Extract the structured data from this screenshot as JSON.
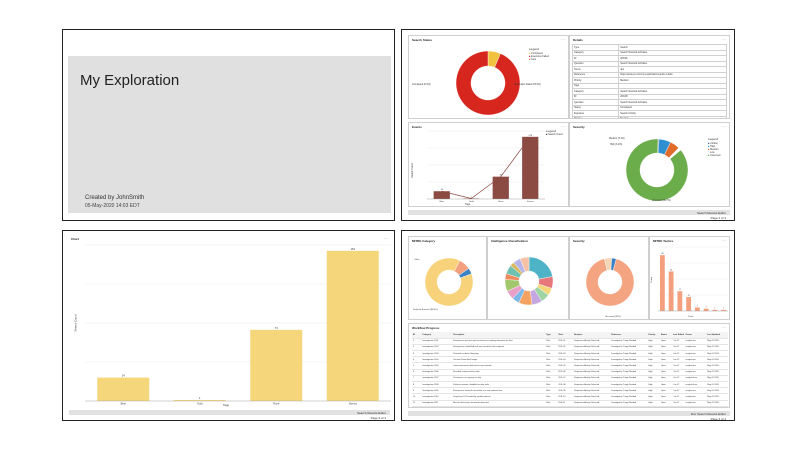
{
  "page1": {
    "title": "My Exploration",
    "created_by": "Created by JohnSmith",
    "created_date": "05-May-2020 14:03 EDT"
  },
  "page2": {
    "panel_a": {
      "title": "Search Status",
      "legend_title": "Legend",
      "legend": [
        "Completed",
        "Execution Failed",
        "Sent"
      ],
      "colors": [
        "#f2c13d",
        "#d7261e",
        "#e87a2a"
      ],
      "pie_label": "Completed (6.4%)",
      "pie_label2": "Execution Failed (93.6%)"
    },
    "panel_b": {
      "title": "Details",
      "rows": [
        [
          "Type",
          "Search"
        ],
        [
          "Category",
          "Search Network Activities"
        ],
        [
          "ID",
          "2CFA6"
        ],
        [
          "Question",
          "Search Network Activities"
        ],
        [
          "Terms",
          "dns"
        ],
        [
          "Reference",
          "https://www.ex.com/my-exploration/results-1-data"
        ],
        [
          "Priority",
          "Medium"
        ],
        [
          "Tags",
          ""
        ],
        [
          "Category",
          "Search Network Activities"
        ],
        [
          "ID",
          "2CFA8"
        ],
        [
          "Question",
          "Search Network Activities"
        ],
        [
          "Status",
          "Completed"
        ],
        [
          "Exposure",
          "Search Activity"
        ],
        [
          "Priority",
          "Medium"
        ],
        [
          "Tags",
          ""
        ],
        [
          "Category",
          "File Intelligence"
        ],
        [
          "ID",
          "2CFA9"
        ]
      ]
    },
    "panel_c": {
      "title": "Events",
      "legend_title": "Legend",
      "legend": [
        "Search Count"
      ],
      "categories": [
        "Blue",
        "Gold",
        "Rose",
        "Sienna"
      ],
      "xlabel": "Tags",
      "ylabel": "Search Count"
    },
    "panel_d": {
      "title": "Severity",
      "legend_title": "Legend",
      "legend": [
        "Critical",
        "High",
        "Medium",
        "Low",
        "Unscored"
      ],
      "label_main": "Unscored (86.7%)",
      "label_a": "Medium (5.1%)",
      "label_b": "High (6.2%)"
    },
    "footer": "Search Results Editor",
    "page": "Page 2 of 4"
  },
  "page3": {
    "title": "Chart",
    "xlabel": "Tags",
    "ylabel": "Search Count",
    "footer": "Search Results Editor",
    "page": "Page 3 of 4"
  },
  "page4": {
    "donut1": {
      "title": "MITRE Category",
      "label": "Defense Evasion (88.0%)",
      "label_b": "Other"
    },
    "donut2": {
      "title": "Intelligence Classification",
      "label": ""
    },
    "donut3": {
      "title": "Severity",
      "label": "Unscored (92%)"
    },
    "bar": {
      "title": "MITRE Tactics",
      "ylabel": "Count",
      "xlabel": "Tactic"
    },
    "table": {
      "title": "Workflow Progress",
      "columns": [
        "ID",
        "Category",
        "Description",
        "Type",
        "Rule",
        "Analysis",
        "Reference",
        "Priority",
        "Status",
        "Last Edited",
        "Owner",
        "Last Updated"
      ],
      "rows": [
        [
          "1",
          "Investigation 1001",
          "A suspicious process was launched via scripting interpreter on host",
          "Rule",
          "RUL-01",
          "Suspicious Activity Detected",
          "Investigation Triage Needed",
          "High",
          "Open",
          "Jun 12",
          "analyst.one",
          "May 05 2020"
        ],
        [
          "2",
          "Investigation 1002",
          "A suspicious scheduled task was created on the endpoint",
          "Rule",
          "RUL-02",
          "Suspicious Activity Detected",
          "Investigation Triage Needed",
          "High",
          "Open",
          "Jun 12",
          "analyst.one",
          "May 05 2020"
        ],
        [
          "3",
          "Investigation 1003",
          "Potential credential dumping",
          "Rule",
          "RUL-03",
          "Suspicious Activity Detected",
          "Investigation Triage Needed",
          "High",
          "Open",
          "Jun 12",
          "analyst.two",
          "May 05 2020"
        ],
        [
          "4",
          "Investigation 1004",
          "Unusual PowerShell usage",
          "Rule",
          "RUL-04",
          "Suspicious Activity Detected",
          "Investigation Triage Needed",
          "High",
          "Open",
          "Jun 12",
          "analyst.two",
          "May 05 2020"
        ],
        [
          "5",
          "Investigation 1005",
          "Lateral movement detected across network",
          "Rule",
          "RUL-05",
          "Suspicious Activity Detected",
          "Investigation Triage Needed",
          "High",
          "Open",
          "Jun 12",
          "analyst.one",
          "May 05 2020"
        ],
        [
          "6",
          "Investigation 1006",
          "Encoded command execution",
          "Rule",
          "RUL-06",
          "Suspicious Activity Detected",
          "Investigation Triage Needed",
          "High",
          "Open",
          "Jun 12",
          "analyst.one",
          "May 05 2020"
        ],
        [
          "7",
          "Investigation 1007",
          "Persistence via registry run key",
          "Rule",
          "RUL-07",
          "Suspicious Activity Detected",
          "Investigation Triage Needed",
          "High",
          "Open",
          "Jun 12",
          "analyst.three",
          "May 05 2020"
        ],
        [
          "8",
          "Investigation 1008",
          "Defense evasion: disabled security tools",
          "Rule",
          "RUL-08",
          "Suspicious Activity Detected",
          "Investigation Triage Needed",
          "High",
          "Open",
          "Jun 12",
          "analyst.three",
          "May 05 2020"
        ],
        [
          "9",
          "Investigation 1009",
          "A suspicious network connection to a rare external host",
          "Rule",
          "RUL-09",
          "Suspicious Activity Detected",
          "Investigation Triage Needed",
          "High",
          "Open",
          "Jun 12",
          "analyst.one",
          "May 05 2020"
        ],
        [
          "10",
          "Investigation 1010",
          "Suspicious DLL loaded by system process",
          "Rule",
          "RUL-10",
          "Suspicious Activity Detected",
          "Investigation Triage Needed",
          "High",
          "Open",
          "Jun 12",
          "analyst.two",
          "May 05 2020"
        ],
        [
          "11",
          "Investigation 1011",
          "Account discovery commands observed",
          "Rule",
          "RUL-11",
          "Suspicious Activity Detected",
          "Investigation Triage Needed",
          "High",
          "Open",
          "Jun 12",
          "analyst.two",
          "May 05 2020"
        ],
        [
          "12",
          "Investigation 1012",
          "Process injection into remote process",
          "Rule",
          "RUL-12",
          "Suspicious Activity Detected",
          "Investigation Triage Needed",
          "High",
          "Open",
          "Jun 12",
          "analyst.one",
          "May 05 2020"
        ],
        [
          "13",
          "Investigation 1013",
          "Suspicious archive created in temp directory",
          "Rule",
          "RUL-13",
          "Suspicious Activity Detected",
          "Investigation Triage Needed",
          "High",
          "Open",
          "Jun 12",
          "analyst.one",
          "May 05 2020"
        ],
        [
          "14",
          "Investigation 1014",
          "Remote service creation detected",
          "Rule",
          "RUL-14",
          "Suspicious Activity Detected",
          "Investigation Triage Needed",
          "High",
          "Open",
          "Jun 12",
          "analyst.three",
          "May 05 2020"
        ]
      ]
    },
    "footer": "Doc Search Results Editor",
    "page": "Page 4 of 4"
  },
  "chart_data": [
    {
      "type": "pie",
      "title": "Search Status",
      "categories": [
        "Completed",
        "Execution Failed"
      ],
      "values": [
        6.4,
        93.6
      ],
      "legend": "top-right"
    },
    {
      "type": "bar",
      "title": "Events",
      "categories": [
        "Blue",
        "Gold",
        "Rose",
        "Sienna"
      ],
      "values": [
        16,
        1,
        46,
        128
      ],
      "ylim": [
        0,
        140
      ],
      "legend": "top-right"
    },
    {
      "type": "pie",
      "title": "Severity",
      "categories": [
        "Critical",
        "High",
        "Medium",
        "Low",
        "Unscored"
      ],
      "values": [
        0.5,
        6.2,
        5.1,
        1.5,
        86.7
      ],
      "legend": "right"
    },
    {
      "type": "bar",
      "title": "Chart",
      "categories": [
        "Blue",
        "Gold",
        "Rose",
        "Sienna"
      ],
      "values": [
        24,
        1,
        73,
        154
      ],
      "ylim": [
        0,
        160
      ],
      "xlabel": "Tags",
      "ylabel": "Search Count"
    },
    {
      "type": "pie",
      "title": "MITRE Category",
      "values": [
        88.0,
        8.0,
        4.0
      ]
    },
    {
      "type": "pie",
      "title": "Intelligence Classification",
      "values": [
        22,
        8,
        5,
        6,
        7,
        9,
        5,
        6,
        8,
        4,
        6,
        3,
        5,
        6
      ]
    },
    {
      "type": "pie",
      "title": "Severity",
      "values": [
        92,
        5,
        3
      ]
    },
    {
      "type": "bar",
      "title": "MITRE Tactics",
      "categories": [
        "t1",
        "t2",
        "t3",
        "t4",
        "t5",
        "t6",
        "t7",
        "t8"
      ],
      "values": [
        48,
        34,
        17,
        12,
        3,
        2,
        1,
        1
      ],
      "ylim": [
        0,
        55
      ],
      "xlabel": "Tactic",
      "ylabel": "Count"
    }
  ]
}
